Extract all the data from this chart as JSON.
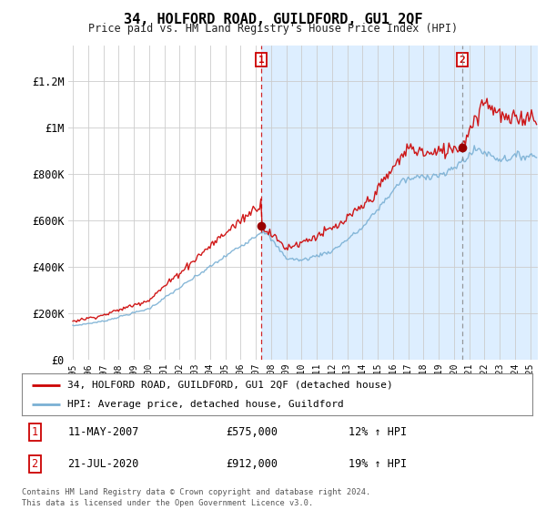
{
  "title": "34, HOLFORD ROAD, GUILDFORD, GU1 2QF",
  "subtitle": "Price paid vs. HM Land Registry's House Price Index (HPI)",
  "legend_line1": "34, HOLFORD ROAD, GUILDFORD, GU1 2QF (detached house)",
  "legend_line2": "HPI: Average price, detached house, Guildford",
  "footnote": "Contains HM Land Registry data © Crown copyright and database right 2024.\nThis data is licensed under the Open Government Licence v3.0.",
  "sale1_date": "11-MAY-2007",
  "sale1_price": "£575,000",
  "sale1_hpi": "12% ↑ HPI",
  "sale2_date": "21-JUL-2020",
  "sale2_price": "£912,000",
  "sale2_hpi": "19% ↑ HPI",
  "sale1_year": 2007.36,
  "sale1_value": 575000,
  "sale2_year": 2020.55,
  "sale2_value": 912000,
  "red_color": "#cc0000",
  "blue_color": "#7ab0d4",
  "plot_bg": "#ffffff",
  "highlight_bg": "#ddeeff",
  "grid_color": "#cccccc",
  "vline1_color": "#cc0000",
  "vline2_color": "#888888",
  "ylim": [
    0,
    1350000
  ],
  "xlim_start": 1994.7,
  "xlim_end": 2025.5,
  "yticks": [
    0,
    200000,
    400000,
    600000,
    800000,
    1000000,
    1200000
  ],
  "ylabels": [
    "£0",
    "£200K",
    "£400K",
    "£600K",
    "£800K",
    "£1M",
    "£1.2M"
  ]
}
